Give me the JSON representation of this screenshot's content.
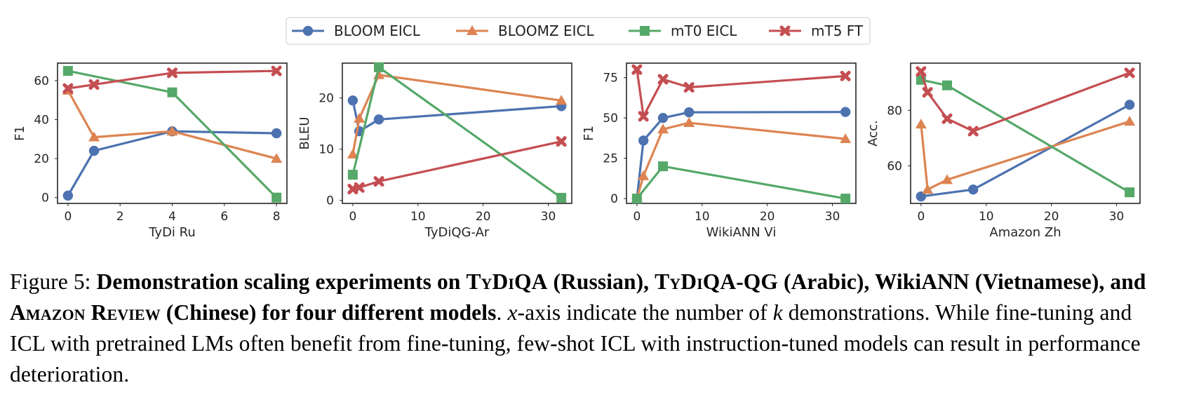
{
  "colors": {
    "BLOOM EICL": "#4c72b0",
    "BLOOMZ EICL": "#dd8452",
    "mT0 EICL": "#55a868",
    "mT5 FT": "#c44e52"
  },
  "markers": {
    "BLOOM EICL": "circle",
    "BLOOMZ EICL": "triangle",
    "mT0 EICL": "square",
    "mT5 FT": "x-mark"
  },
  "legend": {
    "placement": "top-center",
    "entries": [
      "BLOOM EICL",
      "BLOOMZ EICL",
      "mT0 EICL",
      "mT5 FT"
    ]
  },
  "chart_data": [
    {
      "type": "line",
      "xlabel": "TyDi Ru",
      "ylabel": "F1",
      "xlim": [
        -0.4,
        8.4
      ],
      "ylim": [
        -3,
        69
      ],
      "xticks": [
        0,
        2,
        4,
        6,
        8
      ],
      "yticks": [
        0,
        20,
        40,
        60
      ],
      "grid": false,
      "series": [
        {
          "name": "BLOOM EICL",
          "x": [
            0,
            1,
            4,
            8
          ],
          "y": [
            1,
            24,
            34,
            33
          ]
        },
        {
          "name": "BLOOMZ EICL",
          "x": [
            0,
            1,
            4,
            8
          ],
          "y": [
            55,
            31,
            34,
            20
          ]
        },
        {
          "name": "mT0 EICL",
          "x": [
            0,
            4,
            8
          ],
          "y": [
            65,
            54,
            0
          ]
        },
        {
          "name": "mT5 FT",
          "x": [
            0,
            1,
            4,
            8
          ],
          "y": [
            56,
            58,
            64,
            65
          ]
        }
      ]
    },
    {
      "type": "line",
      "xlabel": "TyDiQG-Ar",
      "ylabel": "BLEU",
      "xlim": [
        -1.6,
        33.6
      ],
      "ylim": [
        -0.6,
        26.8
      ],
      "xticks": [
        0,
        10,
        20,
        30
      ],
      "yticks": [
        0,
        10,
        20
      ],
      "grid": false,
      "series": [
        {
          "name": "BLOOM EICL",
          "x": [
            0,
            1,
            4,
            32
          ],
          "y": [
            19.5,
            13.5,
            15.8,
            18.4
          ]
        },
        {
          "name": "BLOOMZ EICL",
          "x": [
            0,
            1,
            4,
            32
          ],
          "y": [
            9,
            16,
            24.5,
            19.5
          ]
        },
        {
          "name": "mT0 EICL",
          "x": [
            0,
            4,
            32
          ],
          "y": [
            5,
            26,
            0.5
          ]
        },
        {
          "name": "mT5 FT",
          "x": [
            0,
            1,
            4,
            32
          ],
          "y": [
            2.2,
            2.5,
            3.7,
            11.5
          ]
        }
      ]
    },
    {
      "type": "line",
      "xlabel": "WikiANN Vi",
      "ylabel": "F1",
      "xlim": [
        -1.6,
        33.6
      ],
      "ylim": [
        -3,
        84
      ],
      "xticks": [
        0,
        10,
        20,
        30
      ],
      "yticks": [
        0,
        25,
        50,
        75
      ],
      "grid": false,
      "series": [
        {
          "name": "BLOOM EICL",
          "x": [
            0,
            1,
            4,
            8,
            32
          ],
          "y": [
            0,
            36,
            50,
            53.5,
            53.7
          ]
        },
        {
          "name": "BLOOMZ EICL",
          "x": [
            0,
            1,
            4,
            8,
            32
          ],
          "y": [
            0,
            14,
            43,
            47,
            37
          ]
        },
        {
          "name": "mT0 EICL",
          "x": [
            0,
            4,
            32
          ],
          "y": [
            0,
            20,
            0
          ]
        },
        {
          "name": "mT5 FT",
          "x": [
            0,
            1,
            4,
            8,
            32
          ],
          "y": [
            80,
            51,
            74,
            69,
            76
          ]
        }
      ]
    },
    {
      "type": "line",
      "xlabel": "Amazon Zh",
      "ylabel": "Acc.",
      "xlim": [
        -1.6,
        33.6
      ],
      "ylim": [
        46.5,
        97
      ],
      "xticks": [
        0,
        10,
        20,
        30
      ],
      "yticks": [
        60,
        80
      ],
      "grid": false,
      "series": [
        {
          "name": "BLOOM EICL",
          "x": [
            0,
            8,
            32
          ],
          "y": [
            49,
            51.5,
            82
          ]
        },
        {
          "name": "BLOOMZ EICL",
          "x": [
            0,
            1,
            4,
            32
          ],
          "y": [
            75,
            51.5,
            55,
            76
          ]
        },
        {
          "name": "mT0 EICL",
          "x": [
            0,
            4,
            32
          ],
          "y": [
            91,
            89,
            50.5
          ]
        },
        {
          "name": "mT5 FT",
          "x": [
            0,
            1,
            4,
            8,
            32
          ],
          "y": [
            94,
            86.5,
            77,
            72.5,
            93.5
          ]
        }
      ]
    }
  ],
  "caption": {
    "label": "Figure 5:",
    "bold_a": "Demonstration scaling experiments on",
    "tydiqa": "TyDiQA",
    "bold_b": "(Russian),",
    "tydiqa_qg": "TyDiQA-QG",
    "bold_c": "(Arabic), WikiANN (Vietnamese), and",
    "amazon_review": "Amazon Review",
    "bold_d": "(Chinese) for four different models",
    "plain_a": ".",
    "x_var": "x",
    "plain_b": "-axis indicate the number of",
    "k_var": "k",
    "plain_c": "demonstrations. While fine-tuning and ICL with pretrained LMs often benefit from fine-tuning, few-shot ICL with instruction-tuned models can result in performance deterioration."
  }
}
